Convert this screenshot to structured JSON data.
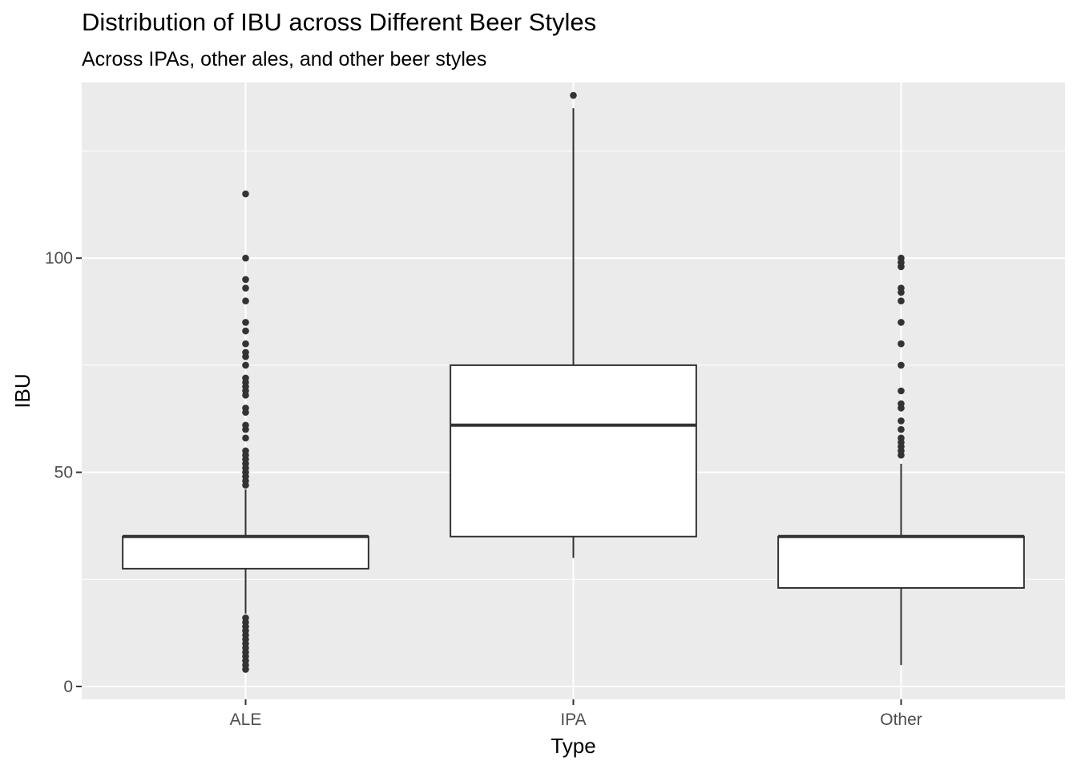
{
  "chart_data": {
    "type": "boxplot",
    "title": "Distribution of IBU across Different Beer Styles",
    "subtitle": "Across IPAs, other ales, and other beer styles",
    "xlabel": "Type",
    "ylabel": "IBU",
    "ylim": [
      -3,
      141
    ],
    "yticks": [
      0,
      50,
      100
    ],
    "categories": [
      "ALE",
      "IPA",
      "Other"
    ],
    "boxes": [
      {
        "category": "ALE",
        "lower_whisker": 17,
        "q1": 27.5,
        "median": 35,
        "q3": 35,
        "upper_whisker": 46,
        "outliers": [
          4,
          5,
          6,
          7,
          8,
          9,
          10,
          11,
          12,
          13,
          14,
          15,
          16,
          47,
          48,
          49,
          50,
          51,
          52,
          53,
          54,
          55,
          58,
          60,
          61,
          64,
          65,
          68,
          69,
          70,
          71,
          72,
          75,
          77,
          78,
          80,
          83,
          85,
          90,
          93,
          95,
          100,
          115
        ]
      },
      {
        "category": "IPA",
        "lower_whisker": 30,
        "q1": 35,
        "median": 61,
        "q3": 75,
        "upper_whisker": 135,
        "outliers": [
          138
        ]
      },
      {
        "category": "Other",
        "lower_whisker": 5,
        "q1": 23,
        "median": 35,
        "q3": 35,
        "upper_whisker": 52,
        "outliers": [
          54,
          55,
          56,
          57,
          58,
          60,
          62,
          65,
          66,
          69,
          75,
          80,
          85,
          90,
          92,
          93,
          98,
          99,
          100
        ]
      }
    ],
    "colors": {
      "panel": "#ebebeb",
      "grid": "#ffffff",
      "box_fill": "#ffffff",
      "box_line": "#333333"
    },
    "grid": true,
    "legend": "none"
  }
}
